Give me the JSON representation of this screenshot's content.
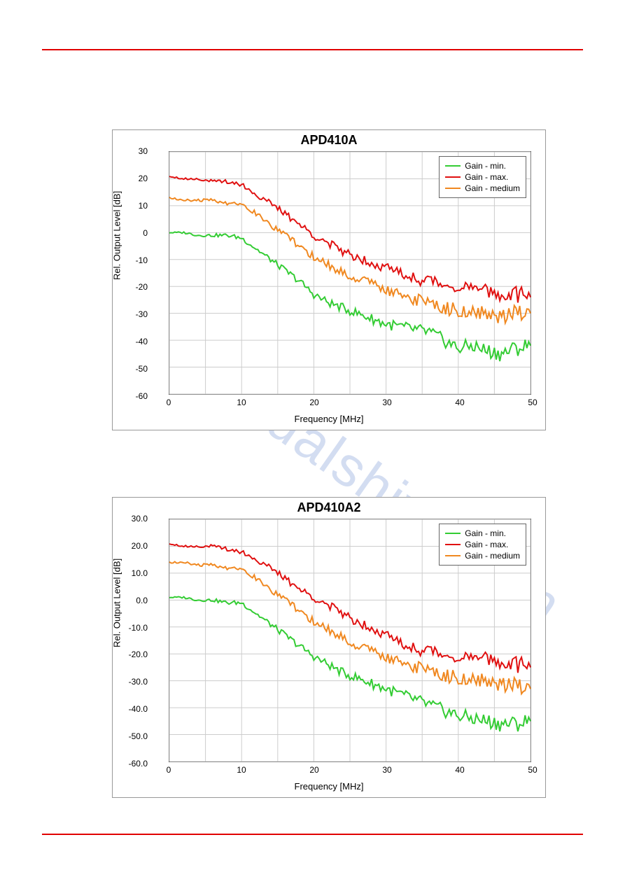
{
  "page": {
    "rule_color": "#e00000",
    "background": "#ffffff",
    "watermark_text": "manualshive.com",
    "watermark_color": "rgba(80,120,200,0.25)"
  },
  "charts": [
    {
      "title": "APD410A",
      "xlabel": "Frequency [MHz]",
      "ylabel": "Rel. Output Level [dB]",
      "xlim": [
        0,
        50
      ],
      "ylim": [
        -60,
        30
      ],
      "xticks": [
        0,
        10,
        20,
        30,
        40,
        50
      ],
      "yticks": [
        -60,
        -50,
        -40,
        -30,
        -20,
        -10,
        0,
        10,
        20,
        30
      ],
      "ytick_labels": [
        "-60",
        "-50",
        "-40",
        "-30",
        "-20",
        "-10",
        "0",
        "10",
        "20",
        "30"
      ],
      "xtick_step": 5,
      "ytick_step": 10,
      "grid_color": "#cccccc",
      "border_color": "#555555",
      "background_color": "#ffffff",
      "line_width": 2,
      "legend": {
        "position": "top-right",
        "items": [
          {
            "label": "Gain - min.",
            "color": "#33cc33"
          },
          {
            "label": "Gain - max.",
            "color": "#e01010"
          },
          {
            "label": "Gain - medium",
            "color": "#f08820"
          }
        ]
      },
      "series": [
        {
          "name": "Gain - min.",
          "color": "#33cc33",
          "x": [
            0,
            2,
            4,
            6,
            8,
            10,
            12,
            14,
            16,
            18,
            20,
            22,
            24,
            26,
            28,
            30,
            32,
            34,
            36,
            38,
            40,
            42,
            44,
            46,
            48,
            50
          ],
          "y": [
            0,
            0,
            -1,
            -1,
            -1,
            -2,
            -6,
            -10,
            -14,
            -18,
            -23,
            -26,
            -28,
            -30,
            -32,
            -34,
            -35,
            -36,
            -37,
            -40,
            -43,
            -42,
            -44,
            -45,
            -43,
            -42
          ]
        },
        {
          "name": "Gain - max.",
          "color": "#e01010",
          "x": [
            0,
            2,
            4,
            6,
            8,
            10,
            12,
            14,
            16,
            18,
            20,
            22,
            24,
            26,
            28,
            30,
            32,
            34,
            36,
            38,
            40,
            42,
            44,
            46,
            48,
            50
          ],
          "y": [
            21,
            20,
            20,
            19,
            19,
            18,
            14,
            11,
            7,
            3,
            -1,
            -4,
            -7,
            -9,
            -11,
            -13,
            -15,
            -17,
            -18,
            -19,
            -20,
            -21,
            -22,
            -23,
            -23,
            -24
          ]
        },
        {
          "name": "Gain - medium",
          "color": "#f08820",
          "x": [
            0,
            2,
            4,
            6,
            8,
            10,
            12,
            14,
            16,
            18,
            20,
            22,
            24,
            26,
            28,
            30,
            32,
            34,
            36,
            38,
            40,
            42,
            44,
            46,
            48,
            50
          ],
          "y": [
            13,
            12,
            12,
            12,
            11,
            11,
            7,
            3,
            -1,
            -5,
            -9,
            -12,
            -15,
            -17,
            -19,
            -21,
            -23,
            -25,
            -26,
            -28,
            -29,
            -30,
            -30,
            -31,
            -30,
            -30
          ]
        }
      ]
    },
    {
      "title": "APD410A2",
      "xlabel": "Frequency  [MHz]",
      "ylabel": "Rel. Output Level  [dB]",
      "xlim": [
        0,
        50
      ],
      "ylim": [
        -60,
        30
      ],
      "xticks": [
        0,
        10,
        20,
        30,
        40,
        50
      ],
      "yticks": [
        -60,
        -50,
        -40,
        -30,
        -20,
        -10,
        0,
        10,
        20,
        30
      ],
      "ytick_labels": [
        "-60.0",
        "-50.0",
        "-40.0",
        "-30.0",
        "-20.0",
        "-10.0",
        "0.0",
        "10.0",
        "20.0",
        "30.0"
      ],
      "xtick_step": 5,
      "ytick_step": 10,
      "grid_color": "#cccccc",
      "border_color": "#555555",
      "background_color": "#ffffff",
      "line_width": 2,
      "legend": {
        "position": "top-right",
        "items": [
          {
            "label": "Gain - min.",
            "color": "#33cc33"
          },
          {
            "label": "Gain - max.",
            "color": "#e01010"
          },
          {
            "label": "Gain - medium",
            "color": "#f08820"
          }
        ]
      },
      "series": [
        {
          "name": "Gain - min.",
          "color": "#33cc33",
          "x": [
            0,
            2,
            4,
            6,
            8,
            10,
            12,
            14,
            16,
            18,
            20,
            22,
            24,
            26,
            28,
            30,
            32,
            34,
            36,
            38,
            40,
            42,
            44,
            46,
            48,
            50
          ],
          "y": [
            1,
            1,
            0,
            0,
            -1,
            -1,
            -5,
            -9,
            -13,
            -17,
            -21,
            -24,
            -27,
            -29,
            -31,
            -33,
            -35,
            -37,
            -39,
            -41,
            -43,
            -44,
            -45,
            -46,
            -46,
            -45
          ]
        },
        {
          "name": "Gain - max.",
          "color": "#e01010",
          "x": [
            0,
            2,
            4,
            6,
            8,
            10,
            12,
            14,
            16,
            18,
            20,
            22,
            24,
            26,
            28,
            30,
            32,
            34,
            36,
            38,
            40,
            42,
            44,
            46,
            48,
            50
          ],
          "y": [
            21,
            20,
            20,
            20,
            19,
            18,
            15,
            12,
            8,
            4,
            1,
            -2,
            -5,
            -8,
            -10,
            -13,
            -16,
            -18,
            -19,
            -20,
            -21,
            -22,
            -22,
            -23,
            -24,
            -25
          ]
        },
        {
          "name": "Gain - medium",
          "color": "#f08820",
          "x": [
            0,
            2,
            4,
            6,
            8,
            10,
            12,
            14,
            16,
            18,
            20,
            22,
            24,
            26,
            28,
            30,
            32,
            34,
            36,
            38,
            40,
            42,
            44,
            46,
            48,
            50
          ],
          "y": [
            14,
            14,
            13,
            13,
            12,
            12,
            8,
            4,
            0,
            -4,
            -8,
            -11,
            -14,
            -17,
            -19,
            -21,
            -23,
            -25,
            -26,
            -28,
            -29,
            -30,
            -30,
            -31,
            -32,
            -33
          ]
        }
      ]
    }
  ]
}
